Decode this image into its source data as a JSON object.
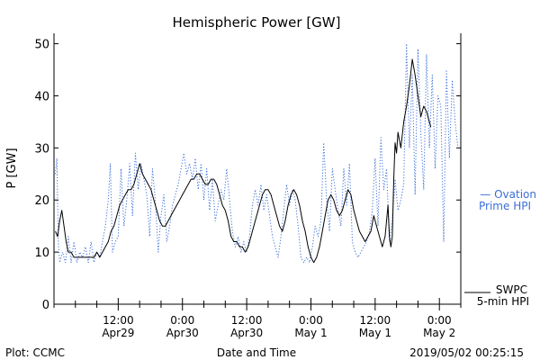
{
  "chart_data": {
    "type": "line",
    "title": "Hemispheric Power [GW]",
    "xlabel": "Date and Time",
    "ylabel": "P [GW]",
    "ylim": [
      0,
      52
    ],
    "xlim": [
      0,
      57
    ],
    "yticks": [
      0,
      10,
      20,
      30,
      40,
      50
    ],
    "xticks": [
      {
        "x": 9,
        "line1": "12:00",
        "line2": "Apr29"
      },
      {
        "x": 18,
        "line1": "0:00",
        "line2": "Apr30"
      },
      {
        "x": 27,
        "line1": "12:00",
        "line2": "Apr30"
      },
      {
        "x": 36,
        "line1": "0:00",
        "line2": "May 1"
      },
      {
        "x": 45,
        "line1": "12:00",
        "line2": "May 1"
      },
      {
        "x": 54,
        "line1": "0:00",
        "line2": "May 2"
      }
    ],
    "grid": false,
    "series": [
      {
        "name": "Ovation Prime HPI",
        "legend_line1": "— Ovation",
        "legend_line2": "Prime HPI",
        "color": "#3a6fd8",
        "style": "dotted",
        "points": [
          [
            0.2,
            25
          ],
          [
            0.4,
            28
          ],
          [
            0.6,
            12
          ],
          [
            0.8,
            8
          ],
          [
            1.2,
            10
          ],
          [
            1.6,
            8
          ],
          [
            2,
            13
          ],
          [
            2.4,
            8
          ],
          [
            2.8,
            12
          ],
          [
            3.2,
            8
          ],
          [
            3.6,
            10
          ],
          [
            4,
            9
          ],
          [
            4.4,
            11
          ],
          [
            4.8,
            8
          ],
          [
            5.2,
            12
          ],
          [
            5.6,
            8
          ],
          [
            6,
            10
          ],
          [
            6.4,
            9
          ],
          [
            6.8,
            12
          ],
          [
            7.2,
            15
          ],
          [
            7.6,
            20
          ],
          [
            7.9,
            27
          ],
          [
            8.2,
            10
          ],
          [
            8.6,
            12
          ],
          [
            9,
            13
          ],
          [
            9.4,
            26
          ],
          [
            9.8,
            15
          ],
          [
            10.2,
            20
          ],
          [
            10.6,
            27
          ],
          [
            11,
            17
          ],
          [
            11.4,
            29
          ],
          [
            11.8,
            22
          ],
          [
            12.2,
            27
          ],
          [
            12.6,
            24
          ],
          [
            13,
            21
          ],
          [
            13.4,
            13
          ],
          [
            13.8,
            26
          ],
          [
            14.2,
            20
          ],
          [
            14.6,
            10
          ],
          [
            15,
            17
          ],
          [
            15.4,
            21
          ],
          [
            15.8,
            12
          ],
          [
            16.2,
            15
          ],
          [
            16.6,
            19
          ],
          [
            17,
            21
          ],
          [
            17.4,
            23
          ],
          [
            17.8,
            26
          ],
          [
            18.2,
            29
          ],
          [
            18.6,
            25
          ],
          [
            19,
            27
          ],
          [
            19.4,
            24
          ],
          [
            19.8,
            28
          ],
          [
            20.2,
            22
          ],
          [
            20.6,
            27
          ],
          [
            21,
            20
          ],
          [
            21.4,
            26
          ],
          [
            21.8,
            18
          ],
          [
            22.2,
            24
          ],
          [
            22.6,
            16
          ],
          [
            23,
            19
          ],
          [
            23.4,
            22
          ],
          [
            23.8,
            20
          ],
          [
            24.2,
            26
          ],
          [
            24.6,
            20
          ],
          [
            25,
            14
          ],
          [
            25.4,
            11
          ],
          [
            25.8,
            13
          ],
          [
            26.2,
            10
          ],
          [
            26.6,
            12
          ],
          [
            27,
            10
          ],
          [
            27.4,
            13
          ],
          [
            27.8,
            19
          ],
          [
            28.2,
            22
          ],
          [
            28.6,
            19
          ],
          [
            29,
            23
          ],
          [
            29.4,
            18
          ],
          [
            29.8,
            21
          ],
          [
            30.2,
            17
          ],
          [
            30.6,
            13
          ],
          [
            31,
            11
          ],
          [
            31.4,
            9
          ],
          [
            31.8,
            13
          ],
          [
            32.2,
            18
          ],
          [
            32.6,
            23
          ],
          [
            33,
            19
          ],
          [
            33.4,
            22
          ],
          [
            33.8,
            20
          ],
          [
            34.2,
            15
          ],
          [
            34.6,
            9
          ],
          [
            35,
            8
          ],
          [
            35.4,
            9
          ],
          [
            35.8,
            8
          ],
          [
            36.2,
            11
          ],
          [
            36.6,
            15
          ],
          [
            37,
            13
          ],
          [
            37.4,
            16
          ],
          [
            37.8,
            31
          ],
          [
            38.2,
            20
          ],
          [
            38.6,
            14
          ],
          [
            39,
            26
          ],
          [
            39.4,
            22
          ],
          [
            39.8,
            18
          ],
          [
            40.2,
            15
          ],
          [
            40.6,
            26
          ],
          [
            41,
            19
          ],
          [
            41.4,
            27
          ],
          [
            41.8,
            12
          ],
          [
            42.2,
            10
          ],
          [
            42.6,
            9
          ],
          [
            43,
            10
          ],
          [
            43.4,
            11
          ],
          [
            43.8,
            12
          ],
          [
            44.2,
            14
          ],
          [
            44.6,
            18
          ],
          [
            45,
            28
          ],
          [
            45.4,
            15
          ],
          [
            45.8,
            32
          ],
          [
            46.2,
            22
          ],
          [
            46.6,
            26
          ],
          [
            47,
            12
          ],
          [
            47.4,
            16
          ],
          [
            47.8,
            24
          ],
          [
            48.2,
            18
          ],
          [
            48.6,
            20
          ],
          [
            49,
            23
          ],
          [
            49.4,
            50
          ],
          [
            49.8,
            30
          ],
          [
            50.2,
            44
          ],
          [
            50.6,
            21
          ],
          [
            51,
            49
          ],
          [
            51.4,
            33
          ],
          [
            51.8,
            22
          ],
          [
            52.2,
            48
          ],
          [
            52.6,
            30
          ],
          [
            53,
            44
          ],
          [
            53.4,
            26
          ],
          [
            53.8,
            40
          ],
          [
            54.2,
            38
          ],
          [
            54.6,
            12
          ],
          [
            55,
            45
          ],
          [
            55.4,
            28
          ],
          [
            55.8,
            43
          ],
          [
            56.2,
            35
          ],
          [
            56.6,
            30
          ]
        ]
      },
      {
        "name": "SWPC 5-min HPI",
        "legend_line1": "SWPC",
        "legend_line2": "5-min HPI",
        "color": "#000000",
        "style": "solid",
        "points": [
          [
            0.2,
            14
          ],
          [
            0.5,
            13
          ],
          [
            0.8,
            16
          ],
          [
            1.1,
            18
          ],
          [
            1.4,
            15
          ],
          [
            1.7,
            12
          ],
          [
            2,
            10
          ],
          [
            2.4,
            10
          ],
          [
            2.8,
            9
          ],
          [
            3.2,
            9
          ],
          [
            3.6,
            9
          ],
          [
            4,
            9
          ],
          [
            4.4,
            9
          ],
          [
            4.8,
            9
          ],
          [
            5.2,
            9
          ],
          [
            5.6,
            9
          ],
          [
            6,
            10
          ],
          [
            6.4,
            9
          ],
          [
            6.8,
            10
          ],
          [
            7.2,
            11
          ],
          [
            7.6,
            12
          ],
          [
            8,
            14
          ],
          [
            8.4,
            15
          ],
          [
            8.8,
            17
          ],
          [
            9.2,
            19
          ],
          [
            9.6,
            20
          ],
          [
            10,
            21
          ],
          [
            10.4,
            22
          ],
          [
            10.8,
            22
          ],
          [
            11.2,
            23
          ],
          [
            11.6,
            25
          ],
          [
            12,
            27
          ],
          [
            12.4,
            25
          ],
          [
            12.8,
            24
          ],
          [
            13.2,
            23
          ],
          [
            13.6,
            22
          ],
          [
            14,
            20
          ],
          [
            14.4,
            18
          ],
          [
            14.8,
            16
          ],
          [
            15.2,
            15
          ],
          [
            15.6,
            15
          ],
          [
            16,
            16
          ],
          [
            16.4,
            17
          ],
          [
            16.8,
            18
          ],
          [
            17.2,
            19
          ],
          [
            17.6,
            20
          ],
          [
            18,
            21
          ],
          [
            18.4,
            22
          ],
          [
            18.8,
            23
          ],
          [
            19.2,
            24
          ],
          [
            19.6,
            24
          ],
          [
            20,
            25
          ],
          [
            20.4,
            25
          ],
          [
            20.8,
            24
          ],
          [
            21.2,
            23
          ],
          [
            21.6,
            23
          ],
          [
            22,
            24
          ],
          [
            22.4,
            24
          ],
          [
            22.8,
            23
          ],
          [
            23.2,
            21
          ],
          [
            23.6,
            19
          ],
          [
            24,
            18
          ],
          [
            24.4,
            16
          ],
          [
            24.8,
            13
          ],
          [
            25.2,
            12
          ],
          [
            25.6,
            12
          ],
          [
            26,
            11
          ],
          [
            26.4,
            11
          ],
          [
            26.8,
            10
          ],
          [
            27.2,
            11
          ],
          [
            27.6,
            13
          ],
          [
            28,
            15
          ],
          [
            28.4,
            17
          ],
          [
            28.8,
            19
          ],
          [
            29.2,
            21
          ],
          [
            29.6,
            22
          ],
          [
            30,
            22
          ],
          [
            30.4,
            21
          ],
          [
            30.8,
            19
          ],
          [
            31.2,
            17
          ],
          [
            31.6,
            15
          ],
          [
            32,
            14
          ],
          [
            32.4,
            16
          ],
          [
            32.8,
            19
          ],
          [
            33.2,
            21
          ],
          [
            33.6,
            22
          ],
          [
            34,
            21
          ],
          [
            34.4,
            19
          ],
          [
            34.8,
            16
          ],
          [
            35.2,
            14
          ],
          [
            35.6,
            11
          ],
          [
            36,
            9
          ],
          [
            36.4,
            8
          ],
          [
            36.8,
            9
          ],
          [
            37.2,
            11
          ],
          [
            37.6,
            14
          ],
          [
            38,
            17
          ],
          [
            38.4,
            20
          ],
          [
            38.8,
            21
          ],
          [
            39.2,
            20
          ],
          [
            39.6,
            18
          ],
          [
            40,
            17
          ],
          [
            40.4,
            18
          ],
          [
            40.8,
            20
          ],
          [
            41.2,
            22
          ],
          [
            41.6,
            21
          ],
          [
            42,
            18
          ],
          [
            42.4,
            16
          ],
          [
            42.8,
            14
          ],
          [
            43.2,
            13
          ],
          [
            43.6,
            12
          ],
          [
            44,
            13
          ],
          [
            44.4,
            14
          ],
          [
            44.8,
            17
          ],
          [
            45.2,
            15
          ],
          [
            45.6,
            13
          ],
          [
            46,
            11
          ],
          [
            46.4,
            13
          ],
          [
            46.8,
            19
          ],
          [
            47,
            13
          ],
          [
            47.2,
            11
          ],
          [
            47.4,
            13
          ],
          [
            47.6,
            24
          ],
          [
            47.8,
            31
          ],
          [
            48,
            29
          ],
          [
            48.2,
            33
          ],
          [
            48.6,
            30
          ],
          [
            49,
            35
          ],
          [
            49.4,
            38
          ],
          [
            49.8,
            42
          ],
          [
            50.2,
            47
          ],
          [
            50.6,
            44
          ],
          [
            51,
            40
          ],
          [
            51.4,
            36
          ],
          [
            51.8,
            38
          ],
          [
            52.2,
            37
          ],
          [
            52.6,
            35
          ],
          [
            52.8,
            34
          ]
        ]
      }
    ]
  },
  "footer": {
    "plot_label": "Plot: CCMC",
    "timestamp": "2019/05/02 00:25:15"
  }
}
